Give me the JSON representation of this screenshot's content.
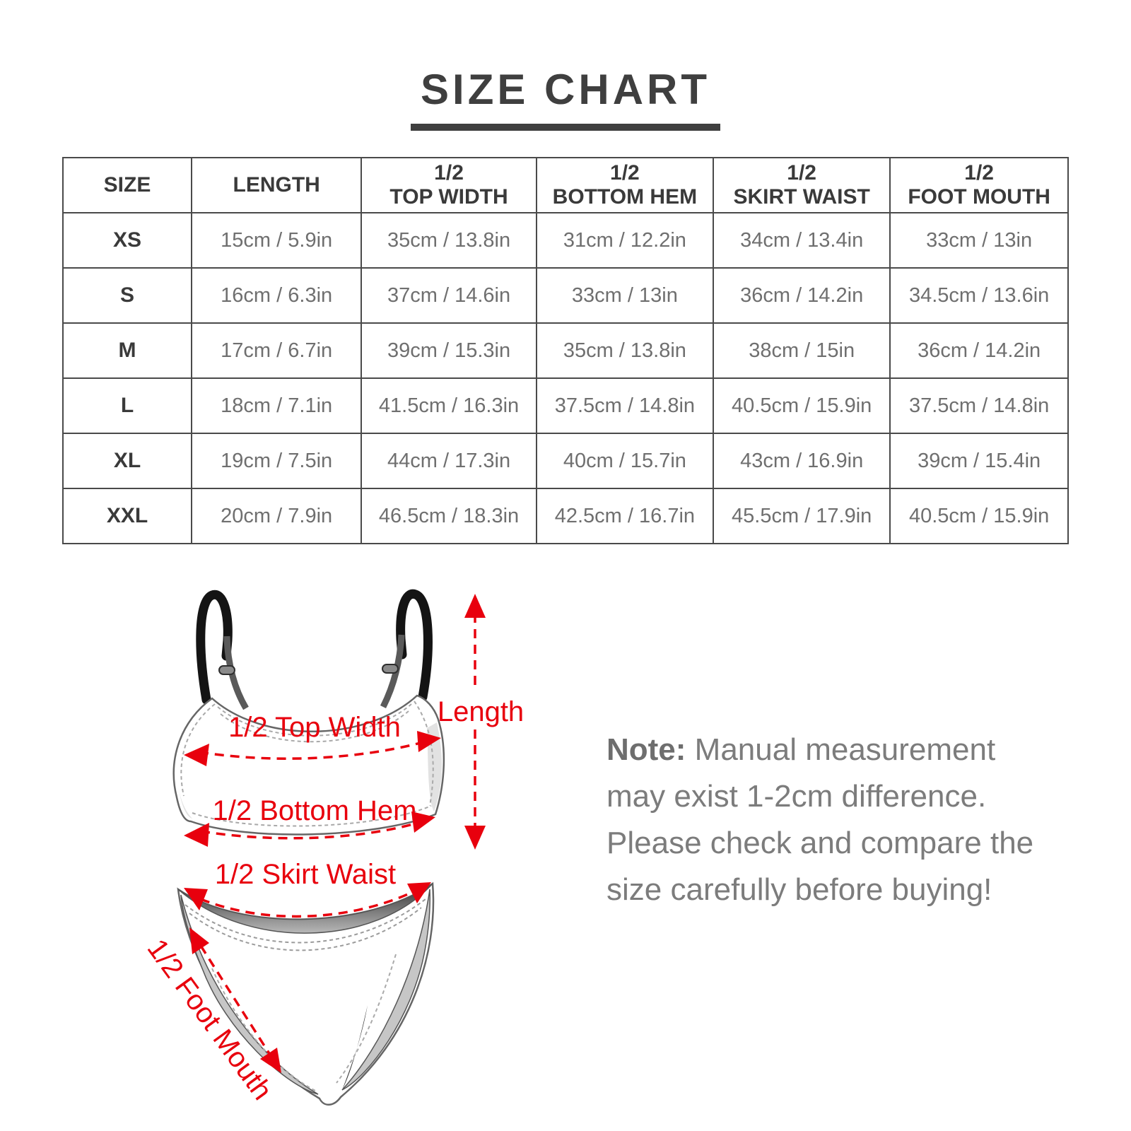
{
  "title": "SIZE CHART",
  "table": {
    "headers": [
      "SIZE",
      "LENGTH",
      "1/2\nTOP WIDTH",
      "1/2\nBOTTOM HEM",
      "1/2\nSKIRT WAIST",
      "1/2\nFOOT MOUTH"
    ],
    "column_keys": [
      "size",
      "length",
      "top_width",
      "bottom_hem",
      "skirt_waist",
      "foot_mouth"
    ],
    "rows": [
      {
        "size": "XS",
        "length": "15cm / 5.9in",
        "top_width": "35cm / 13.8in",
        "bottom_hem": "31cm / 12.2in",
        "skirt_waist": "34cm / 13.4in",
        "foot_mouth": "33cm / 13in"
      },
      {
        "size": "S",
        "length": "16cm / 6.3in",
        "top_width": "37cm / 14.6in",
        "bottom_hem": "33cm / 13in",
        "skirt_waist": "36cm / 14.2in",
        "foot_mouth": "34.5cm / 13.6in"
      },
      {
        "size": "M",
        "length": "17cm / 6.7in",
        "top_width": "39cm / 15.3in",
        "bottom_hem": "35cm / 13.8in",
        "skirt_waist": "38cm / 15in",
        "foot_mouth": "36cm / 14.2in"
      },
      {
        "size": "L",
        "length": "18cm / 7.1in",
        "top_width": "41.5cm / 16.3in",
        "bottom_hem": "37.5cm / 14.8in",
        "skirt_waist": "40.5cm / 15.9in",
        "foot_mouth": "37.5cm / 14.8in"
      },
      {
        "size": "XL",
        "length": "19cm / 7.5in",
        "top_width": "44cm / 17.3in",
        "bottom_hem": "40cm / 15.7in",
        "skirt_waist": "43cm / 16.9in",
        "foot_mouth": "39cm / 15.4in"
      },
      {
        "size": "XXL",
        "length": "20cm / 7.9in",
        "top_width": "46.5cm / 18.3in",
        "bottom_hem": "42.5cm / 16.7in",
        "skirt_waist": "45.5cm / 17.9in",
        "foot_mouth": "40.5cm / 15.9in"
      }
    ]
  },
  "diagram": {
    "accent_color": "#e8000d",
    "labels": {
      "top_width": "1/2 Top Width",
      "length": "Length",
      "bottom_hem": "1/2 Bottom Hem",
      "skirt_waist": "1/2 Skirt Waist",
      "foot_mouth": "1/2 Foot Mouth"
    }
  },
  "note": {
    "label": "Note:",
    "text": " Manual measurement may exist 1-2cm difference. Please check and compare the size carefully before buying!"
  }
}
